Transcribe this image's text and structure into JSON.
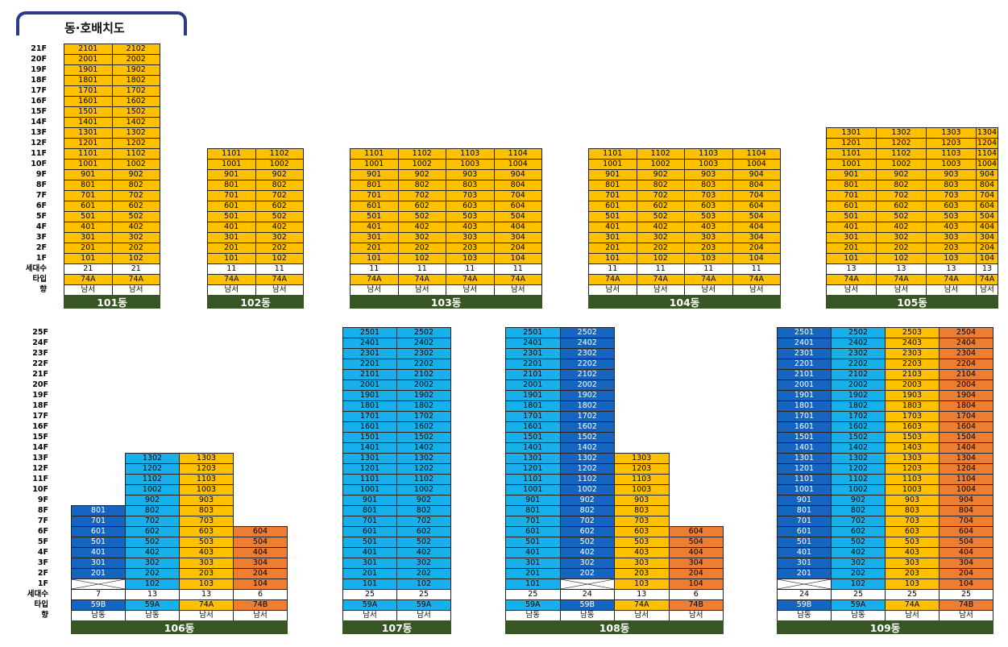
{
  "title": "동·호배치도",
  "row_labels": {
    "households": "세대수",
    "type": "타입",
    "direction": "향"
  },
  "floor_labels_top": [
    "21F",
    "20F",
    "19F",
    "18F",
    "17F",
    "16F",
    "15F",
    "14F",
    "13F",
    "12F",
    "11F",
    "10F",
    "9F",
    "8F",
    "7F",
    "6F",
    "5F",
    "4F",
    "3F",
    "2F",
    "1F"
  ],
  "floor_labels_bottom": [
    "25F",
    "24F",
    "23F",
    "22F",
    "21F",
    "20F",
    "19F",
    "18F",
    "17F",
    "16F",
    "15F",
    "14F",
    "13F",
    "12F",
    "11F",
    "10F",
    "9F",
    "8F",
    "7F",
    "6F",
    "5F",
    "4F",
    "3F",
    "2F",
    "1F"
  ],
  "colors": {
    "yellow": "#ffc000",
    "light_blue": "#18b0eb",
    "dark_blue": "#1565c0",
    "orange": "#ed7d31",
    "name_bar": "#375623"
  },
  "buildings": [
    {
      "name": "101동",
      "lines": [
        {
          "max": 21,
          "units": 21,
          "type": "74A",
          "dir": "남서",
          "color": "yellow"
        },
        {
          "max": 21,
          "units": 21,
          "type": "74A",
          "dir": "남서",
          "color": "yellow"
        }
      ]
    },
    {
      "name": "102동",
      "lines": [
        {
          "max": 11,
          "units": 11,
          "type": "74A",
          "dir": "남서",
          "color": "yellow"
        },
        {
          "max": 11,
          "units": 11,
          "type": "74A",
          "dir": "남서",
          "color": "yellow"
        }
      ]
    },
    {
      "name": "103동",
      "lines": [
        {
          "max": 11,
          "units": 11,
          "type": "74A",
          "dir": "남서",
          "color": "yellow"
        },
        {
          "max": 11,
          "units": 11,
          "type": "74A",
          "dir": "남서",
          "color": "yellow"
        },
        {
          "max": 11,
          "units": 11,
          "type": "74A",
          "dir": "남서",
          "color": "yellow"
        },
        {
          "max": 11,
          "units": 11,
          "type": "74A",
          "dir": "남서",
          "color": "yellow"
        }
      ]
    },
    {
      "name": "104동",
      "lines": [
        {
          "max": 11,
          "units": 11,
          "type": "74A",
          "dir": "남서",
          "color": "yellow"
        },
        {
          "max": 11,
          "units": 11,
          "type": "74A",
          "dir": "남서",
          "color": "yellow"
        },
        {
          "max": 11,
          "units": 11,
          "type": "74A",
          "dir": "남서",
          "color": "yellow"
        },
        {
          "max": 11,
          "units": 11,
          "type": "74A",
          "dir": "남서",
          "color": "yellow"
        }
      ]
    },
    {
      "name": "105동",
      "lines": [
        {
          "max": 13,
          "units": 13,
          "type": "74A",
          "dir": "남서",
          "color": "yellow"
        },
        {
          "max": 13,
          "units": 13,
          "type": "74A",
          "dir": "남서",
          "color": "yellow"
        },
        {
          "max": 13,
          "units": 13,
          "type": "74A",
          "dir": "남서",
          "color": "yellow"
        },
        {
          "max": 13,
          "units": 13,
          "type": "74A",
          "dir": "남서",
          "color": "yellow"
        }
      ]
    },
    {
      "name": "106동",
      "lines": [
        {
          "max": 8,
          "units": 7,
          "empty1F": true,
          "type": "59B",
          "dir": "남동",
          "color": "dark_blue"
        },
        {
          "max": 13,
          "units": 13,
          "type": "59A",
          "dir": "남동",
          "color": "light_blue"
        },
        {
          "max": 13,
          "units": 13,
          "type": "74A",
          "dir": "남서",
          "color": "yellow"
        },
        {
          "max": 6,
          "units": 6,
          "type": "74B",
          "dir": "남서",
          "color": "orange"
        }
      ]
    },
    {
      "name": "107동",
      "lines": [
        {
          "max": 25,
          "units": 25,
          "type": "59A",
          "dir": "남서",
          "color": "light_blue"
        },
        {
          "max": 25,
          "units": 25,
          "type": "59A",
          "dir": "남서",
          "color": "light_blue"
        }
      ]
    },
    {
      "name": "108동",
      "lines": [
        {
          "max": 25,
          "units": 25,
          "type": "59A",
          "dir": "남동",
          "color": "light_blue"
        },
        {
          "max": 25,
          "units": 24,
          "empty1F": true,
          "type": "59B",
          "dir": "남동",
          "color": "dark_blue"
        },
        {
          "max": 13,
          "units": 13,
          "type": "74A",
          "dir": "남서",
          "color": "yellow"
        },
        {
          "max": 6,
          "units": 6,
          "type": "74B",
          "dir": "남서",
          "color": "orange"
        }
      ]
    },
    {
      "name": "109동",
      "lines": [
        {
          "max": 25,
          "units": 24,
          "empty1F": true,
          "type": "59B",
          "dir": "남동",
          "color": "dark_blue"
        },
        {
          "max": 25,
          "units": 25,
          "type": "59A",
          "dir": "남동",
          "color": "light_blue"
        },
        {
          "max": 25,
          "units": 25,
          "type": "74A",
          "dir": "남서",
          "color": "yellow"
        },
        {
          "max": 25,
          "units": 25,
          "type": "74B",
          "dir": "남서",
          "color": "orange"
        }
      ]
    }
  ]
}
